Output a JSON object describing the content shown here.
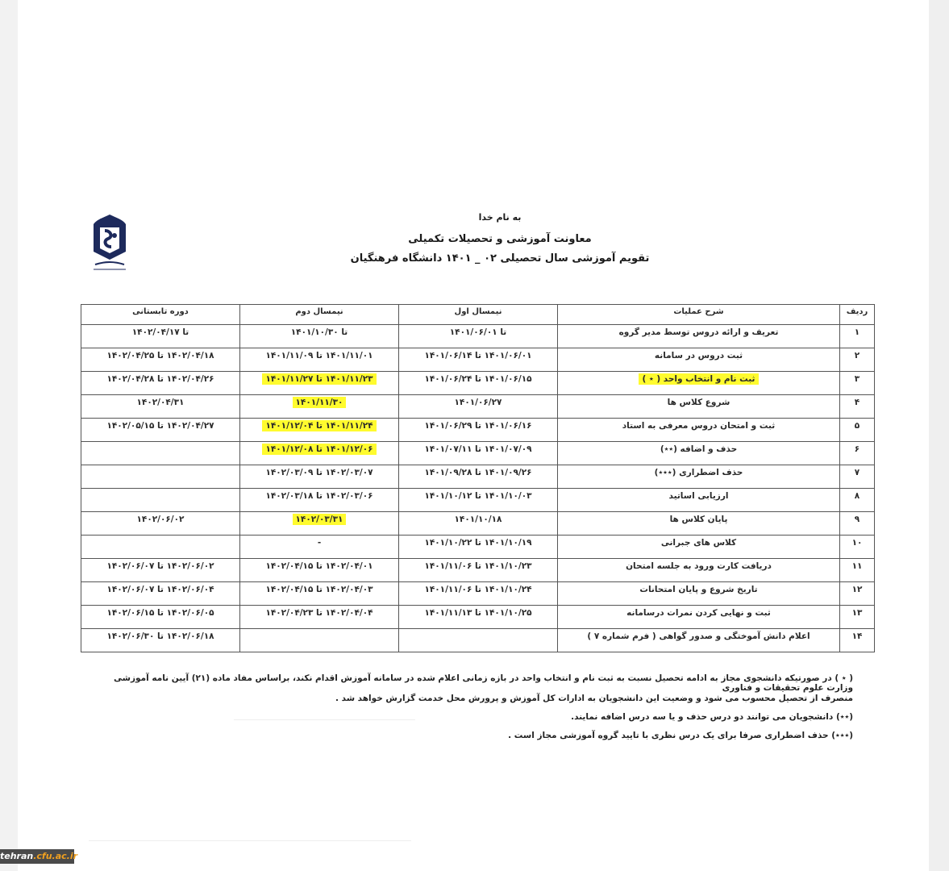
{
  "header": {
    "line1": "به نام خدا",
    "line2": "معاونت آموزشی و تحصیلات تکمیلی",
    "line3": "تقویم آموزشی سال تحصیلی ۰۲ _ ۱۴۰۱ دانشگاه فرهنگیان"
  },
  "logo": {
    "text": "دانشگاه فرهنگیان",
    "color": "#1d2a5c"
  },
  "table": {
    "columns": [
      "ردیف",
      "شرح عملیات",
      "نیمسال اول",
      "نیمسال دوم",
      "دوره تابستانی"
    ],
    "rows": [
      {
        "cells": [
          "۱",
          "تعریف و ارائه دروس توسط مدیر گروه",
          "تا ۱۴۰۱/۰۶/۰۱",
          "تا ۱۴۰۱/۱۰/۳۰",
          "تا ۱۴۰۲/۰۴/۱۷"
        ],
        "highlight": []
      },
      {
        "cells": [
          "۲",
          "ثبت دروس در سامانه",
          "۱۴۰۱/۰۶/۰۱ تا ۱۴۰۱/۰۶/۱۴",
          "۱۴۰۱/۱۱/۰۱ تا ۱۴۰۱/۱۱/۰۹",
          "۱۴۰۲/۰۴/۱۸ تا ۱۴۰۲/۰۴/۲۵"
        ],
        "highlight": []
      },
      {
        "cells": [
          "۳",
          "ثبت نام و انتخاب واحد ( ٭ )",
          "۱۴۰۱/۰۶/۱۵ تا ۱۴۰۱/۰۶/۲۴",
          "۱۴۰۱/۱۱/۲۳ تا ۱۴۰۱/۱۱/۲۷",
          "۱۴۰۲/۰۴/۲۶ تا ۱۴۰۲/۰۴/۲۸"
        ],
        "highlight": [
          1,
          3
        ]
      },
      {
        "cells": [
          "۴",
          "شروع کلاس ها",
          "۱۴۰۱/۰۶/۲۷",
          "۱۴۰۱/۱۱/۳۰",
          "۱۴۰۲/۰۴/۳۱"
        ],
        "highlight": [
          3
        ]
      },
      {
        "cells": [
          "۵",
          "ثبت و امتحان دروس معرفی به استاد",
          "۱۴۰۱/۰۶/۱۶ تا ۱۴۰۱/۰۶/۲۹",
          "۱۴۰۱/۱۱/۲۴ تا ۱۴۰۱/۱۲/۰۴",
          "۱۴۰۲/۰۴/۲۷ تا ۱۴۰۲/۰۵/۱۵"
        ],
        "highlight": [
          3
        ]
      },
      {
        "cells": [
          "۶",
          "حذف و اضافه (٭٭)",
          "۱۴۰۱/۰۷/۰۹ تا ۱۴۰۱/۰۷/۱۱",
          "۱۴۰۱/۱۲/۰۶ تا ۱۴۰۱/۱۲/۰۸",
          ""
        ],
        "highlight": [
          3
        ]
      },
      {
        "cells": [
          "۷",
          "حذف اضطراری (٭٭٭)",
          "۱۴۰۱/۰۹/۲۶ تا ۱۴۰۱/۰۹/۲۸",
          "۱۴۰۲/۰۳/۰۷ تا ۱۴۰۲/۰۳/۰۹",
          ""
        ],
        "highlight": []
      },
      {
        "cells": [
          "۸",
          "ارزیابی اساتید",
          "۱۴۰۱/۱۰/۰۳ تا ۱۴۰۱/۱۰/۱۲",
          "۱۴۰۲/۰۳/۰۶ تا ۱۴۰۲/۰۳/۱۸",
          ""
        ],
        "highlight": []
      },
      {
        "cells": [
          "۹",
          "پایان کلاس ها",
          "۱۴۰۱/۱۰/۱۸",
          "۱۴۰۲/۰۳/۳۱",
          "۱۴۰۲/۰۶/۰۲"
        ],
        "highlight": [
          3
        ]
      },
      {
        "cells": [
          "۱۰",
          "کلاس های جبرانی",
          "۱۴۰۱/۱۰/۱۹ تا ۱۴۰۱/۱۰/۲۲",
          "-",
          ""
        ],
        "highlight": []
      },
      {
        "cells": [
          "۱۱",
          "دریافت کارت ورود به جلسه امتحان",
          "۱۴۰۱/۱۰/۲۳ تا ۱۴۰۱/۱۱/۰۶",
          "۱۴۰۲/۰۴/۰۱ تا ۱۴۰۲/۰۴/۱۵",
          "۱۴۰۲/۰۶/۰۲ تا ۱۴۰۲/۰۶/۰۷"
        ],
        "highlight": []
      },
      {
        "cells": [
          "۱۲",
          "تاریخ شروع و پایان امتحانات",
          "۱۴۰۱/۱۰/۲۴ تا ۱۴۰۱/۱۱/۰۶",
          "۱۴۰۲/۰۴/۰۳ تا ۱۴۰۲/۰۴/۱۵",
          "۱۴۰۲/۰۶/۰۴ تا ۱۴۰۲/۰۶/۰۷"
        ],
        "highlight": []
      },
      {
        "cells": [
          "۱۳",
          "ثبت و نهایی کردن نمرات درسامانه",
          "۱۴۰۱/۱۰/۲۵ تا ۱۴۰۱/۱۱/۱۳",
          "۱۴۰۲/۰۴/۰۴ تا ۱۴۰۲/۰۴/۲۳",
          "۱۴۰۲/۰۶/۰۵ تا ۱۴۰۲/۰۶/۱۵"
        ],
        "highlight": []
      },
      {
        "cells": [
          "۱۴",
          "اعلام دانش آموختگی و صدور گواهی ( فرم شماره ۷ )",
          "",
          "",
          "۱۴۰۲/۰۶/۱۸ تا ۱۴۰۲/۰۶/۳۰"
        ],
        "highlight": []
      }
    ],
    "highlight_color": "#fffb2e"
  },
  "notes": [
    "( ٭ ) در صورتیکه دانشجوی مجاز به ادامه تحصیل نسبت به ثبت نام و انتخاب واحد در بازه زمانی اعلام شده در سامانه آموزش اقدام نکند، براساس مفاد ماده (۲۱) آیین نامه آموزشی وزارت علوم تحقیقات و فناوری",
    "منصرف از تحصیل محسوب می شود و وضعیت این دانشجویان به ادارات کل آموزش و پرورش محل خدمت گزارش خواهد شد .",
    "(٭٭) دانشجویان می توانند دو درس حذف و یا سه درس اضافه نمایند.",
    "(٭٭٭) حذف اضطراری صرفا برای یک درس نظری با تایید گروه آموزشی مجاز است ."
  ],
  "watermark": {
    "part1": "tehran",
    "part2": ".cfu.ac.ir"
  }
}
